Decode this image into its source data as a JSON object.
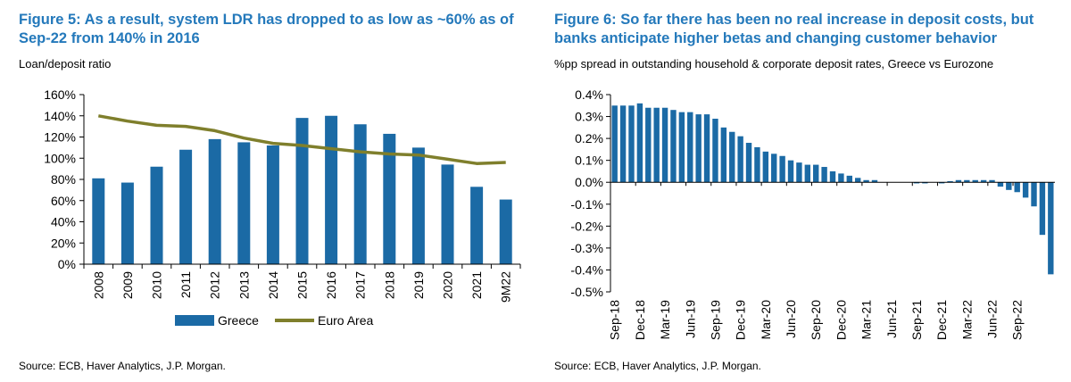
{
  "colors": {
    "title": "#2479bb",
    "greece": "#1b6aa5",
    "euro": "#7f7f2c",
    "axis": "#000000"
  },
  "figure5": {
    "title": "Figure 5: As a result, system LDR has dropped to as low as ~60% as of Sep-22 from 140% in 2016",
    "subtitle": "Loan/deposit ratio",
    "source": "Source: ECB, Haver Analytics, J.P. Morgan."
  },
  "figure6": {
    "title": "Figure 6: So far there has been no real increase in deposit costs, but banks anticipate higher betas and changing customer behavior",
    "subtitle": "%pp spread in outstanding household & corporate deposit rates, Greece vs Eurozone",
    "source": "Source: ECB, Haver Analytics, J.P. Morgan."
  },
  "chart_data": [
    {
      "type": "bar",
      "title": "Figure 5: As a result, system LDR has dropped to as low as ~60% as of Sep-22 from 140% in 2016",
      "ylabel": "Loan/deposit ratio",
      "categories": [
        "2008",
        "2009",
        "2010",
        "2011",
        "2012",
        "2013",
        "2014",
        "2015",
        "2016",
        "2017",
        "2018",
        "2019",
        "2020",
        "2021",
        "9M22"
      ],
      "series": [
        {
          "name": "Greece",
          "type": "bar",
          "values": [
            81,
            77,
            92,
            108,
            118,
            115,
            112,
            138,
            140,
            132,
            123,
            110,
            94,
            73,
            61
          ]
        },
        {
          "name": "Euro Area",
          "type": "line",
          "values": [
            140,
            135,
            131,
            130,
            126,
            119,
            114,
            112,
            109,
            106,
            104,
            103,
            99,
            95,
            96
          ]
        }
      ],
      "ylim": [
        0,
        160
      ],
      "yticks": [
        0,
        20,
        40,
        60,
        80,
        100,
        120,
        140,
        160
      ],
      "ytick_labels": [
        "0%",
        "20%",
        "40%",
        "60%",
        "80%",
        "100%",
        "120%",
        "140%",
        "160%"
      ],
      "legend_position": "bottom"
    },
    {
      "type": "bar",
      "title": "Figure 6: So far there has been no real increase in deposit costs, but banks anticipate higher betas and changing customer behavior",
      "ylabel": "%pp spread in outstanding household & corporate deposit rates, Greece vs Eurozone",
      "x_tick_labels": [
        "Sep-18",
        "Dec-18",
        "Mar-19",
        "Jun-19",
        "Sep-19",
        "Dec-19",
        "Mar-20",
        "Jun-20",
        "Sep-20",
        "Dec-20",
        "Mar-21",
        "Jun-21",
        "Sep-21",
        "Dec-21",
        "Mar-22",
        "Jun-22",
        "Sep-22"
      ],
      "series": [
        {
          "name": "Greece vs Eurozone spread",
          "values": [
            0.35,
            0.35,
            0.35,
            0.36,
            0.34,
            0.34,
            0.34,
            0.33,
            0.32,
            0.32,
            0.31,
            0.31,
            0.29,
            0.25,
            0.23,
            0.21,
            0.18,
            0.16,
            0.14,
            0.13,
            0.12,
            0.1,
            0.09,
            0.08,
            0.08,
            0.07,
            0.05,
            0.04,
            0.03,
            0.02,
            0.01,
            0.01,
            0,
            0,
            0,
            0,
            -0.005,
            -0.005,
            0,
            -0.005,
            0.005,
            0.01,
            0.01,
            0.01,
            0.01,
            0.01,
            -0.02,
            -0.035,
            -0.045,
            -0.07,
            -0.11,
            -0.24,
            -0.42
          ]
        }
      ],
      "ylim": [
        -0.5,
        0.4
      ],
      "yticks": [
        -0.5,
        -0.4,
        -0.3,
        -0.2,
        -0.1,
        0,
        0.1,
        0.2,
        0.3,
        0.4
      ],
      "ytick_labels": [
        "-0.5%",
        "-0.4%",
        "-0.3%",
        "-0.2%",
        "-0.1%",
        "0.0%",
        "0.1%",
        "0.2%",
        "0.3%",
        "0.4%"
      ],
      "legend_position": "none"
    }
  ]
}
